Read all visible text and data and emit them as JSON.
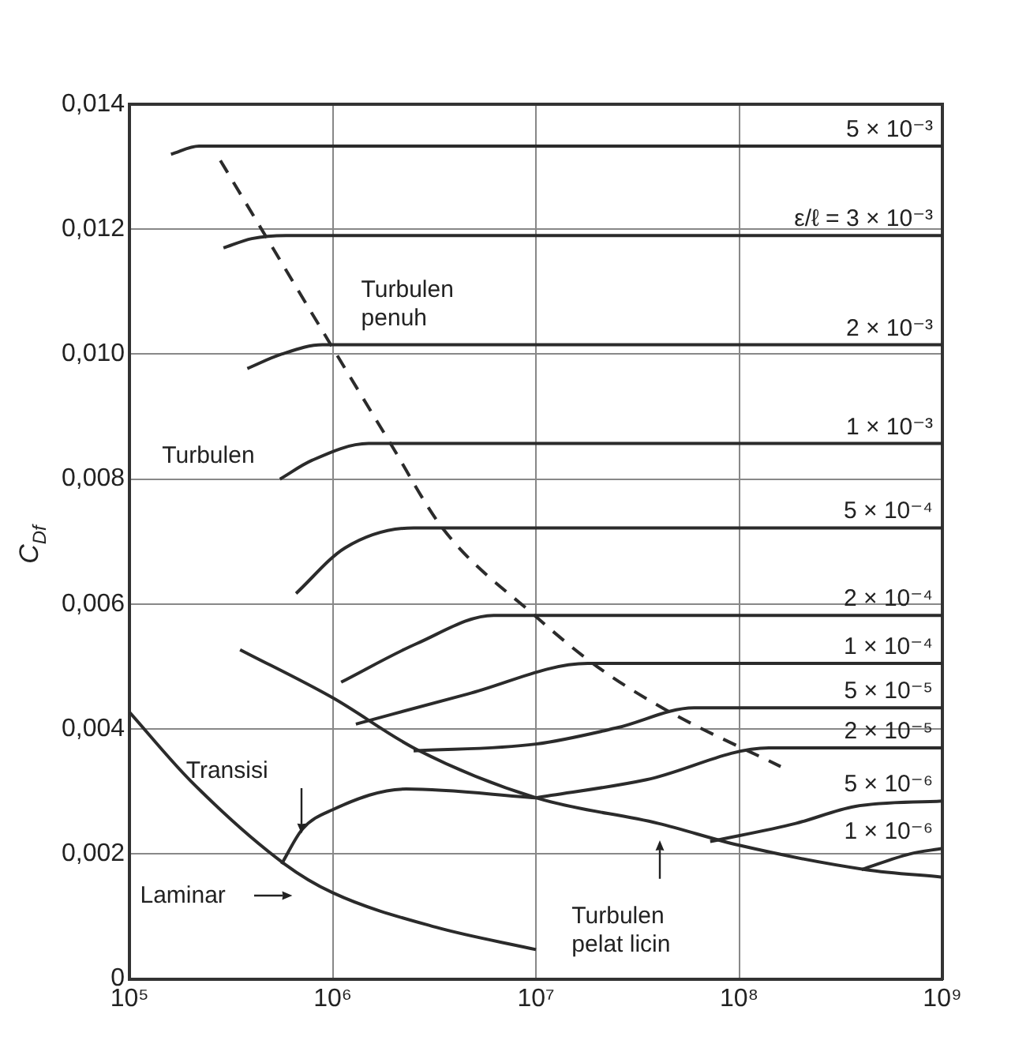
{
  "chart_data": {
    "type": "line",
    "ylabel": "C$_{Df}$",
    "log": "x",
    "grid": true,
    "legend": false,
    "xlim": [
      100000,
      1000000000
    ],
    "xticks": [
      {
        "value": 100000,
        "label": "10⁵"
      },
      {
        "value": 1000000,
        "label": "10⁶"
      },
      {
        "value": 10000000,
        "label": "10⁷"
      },
      {
        "value": 100000000,
        "label": "10⁸"
      },
      {
        "value": 1000000000,
        "label": "10⁹"
      }
    ],
    "ylim": [
      0,
      0.014
    ],
    "yticks": [
      0,
      {
        "value": 0.002,
        "label": "0,002"
      },
      {
        "value": 0.004,
        "label": "0,004"
      },
      {
        "value": 0.006,
        "label": "0,006"
      },
      {
        "value": 0.008,
        "label": "0,008"
      },
      {
        "value": 0.01,
        "label": "0,010"
      },
      {
        "value": 0.012,
        "label": "0,012"
      },
      {
        "value": 0.014,
        "label": "0,014"
      }
    ],
    "series": [
      {
        "name": "5 × 10⁻³",
        "color": "#2b2b2b",
        "x": [
          160000,
          220000,
          1000000000
        ],
        "values": [
          0.0132,
          0.01333,
          0.01333
        ]
      },
      {
        "name": "ε/ℓ = 3 × 10⁻³",
        "color": "#2b2b2b",
        "x": [
          290000,
          400000,
          590000,
          1000000000
        ],
        "values": [
          0.0117,
          0.01185,
          0.0119,
          0.0119
        ]
      },
      {
        "name": "2 × 10⁻³",
        "color": "#2b2b2b",
        "x": [
          380000,
          560000,
          890000,
          1000000000
        ],
        "values": [
          0.00977,
          0.01,
          0.01015,
          0.01015
        ]
      },
      {
        "name": "1 × 10⁻³",
        "color": "#2b2b2b",
        "x": [
          550000,
          790000,
          1500000,
          1000000000
        ],
        "values": [
          0.008,
          0.0083,
          0.00857,
          0.00857
        ]
      },
      {
        "name": "5 × 10⁻⁴",
        "color": "#2b2b2b",
        "x": [
          660000,
          1150000,
          2500000,
          1000000000
        ],
        "values": [
          0.00617,
          0.0069,
          0.00722,
          0.00722
        ]
      },
      {
        "name": "2 × 10⁻⁴",
        "color": "#2b2b2b",
        "x": [
          1100000,
          2600000,
          6200000,
          1000000000
        ],
        "values": [
          0.00475,
          0.00537,
          0.00582,
          0.00582
        ]
      },
      {
        "name": "1 × 10⁻⁴",
        "color": "#2b2b2b",
        "x": [
          1300000,
          4600000,
          18000000,
          1000000000
        ],
        "values": [
          0.00408,
          0.00456,
          0.00505,
          0.00505
        ]
      },
      {
        "name": "5 × 10⁻⁵",
        "color": "#2b2b2b",
        "x": [
          2500000,
          10000000,
          25000000,
          60000000,
          1000000000
        ],
        "values": [
          0.00365,
          0.00376,
          0.00402,
          0.00434,
          0.00434
        ]
      },
      {
        "name": "2 × 10⁻⁵",
        "color": "#2b2b2b",
        "x": [
          10000000,
          35000000,
          140000000,
          1000000000
        ],
        "values": [
          0.0029,
          0.00319,
          0.0037,
          0.0037
        ]
      },
      {
        "name": "5 × 10⁻⁶",
        "color": "#2b2b2b",
        "x": [
          72000000,
          190000000,
          370000000,
          1000000000
        ],
        "values": [
          0.0022,
          0.00249,
          0.00276,
          0.00285
        ]
      },
      {
        "name": "1 × 10⁻⁶",
        "color": "#2b2b2b",
        "x": [
          400000000,
          690000000,
          1000000000
        ],
        "values": [
          0.00175,
          0.002,
          0.00209
        ]
      },
      {
        "color": "#2b2b2b",
        "x": [
          560000,
          710000,
          1000000,
          2300000,
          10000000
        ],
        "values": [
          0.00184,
          0.0024,
          0.00271,
          0.00304,
          0.0029
        ]
      },
      {
        "color": "#2b2b2b",
        "x": [
          350000,
          1000000,
          2600000,
          10000000,
          40000000,
          100000000,
          420000000,
          1000000000
        ],
        "values": [
          0.00527,
          0.0045,
          0.00367,
          0.0029,
          0.00249,
          0.00214,
          0.00175,
          0.00163
        ]
      },
      {
        "color": "#2b2b2b",
        "x": [
          100000,
          200000,
          580000,
          1000000,
          3200000,
          10000000
        ],
        "values": [
          0.00427,
          0.00317,
          0.00184,
          0.00138,
          0.00083,
          0.00047
        ]
      },
      {
        "color": "#2b2b2b",
        "line_style": "dashed",
        "x": [
          280000,
          1000000,
          1900000,
          3500000,
          10000000,
          20000000,
          44000000,
          160000000
        ],
        "values": [
          0.0131,
          0.0101,
          0.0086,
          0.0072,
          0.0058,
          0.005,
          0.0043,
          0.0034
        ]
      }
    ],
    "annotations": [
      "Turbulen\npenuh",
      "Turbulen",
      "Transisi",
      "Laminar",
      "Turbulen\npelat licin"
    ]
  }
}
